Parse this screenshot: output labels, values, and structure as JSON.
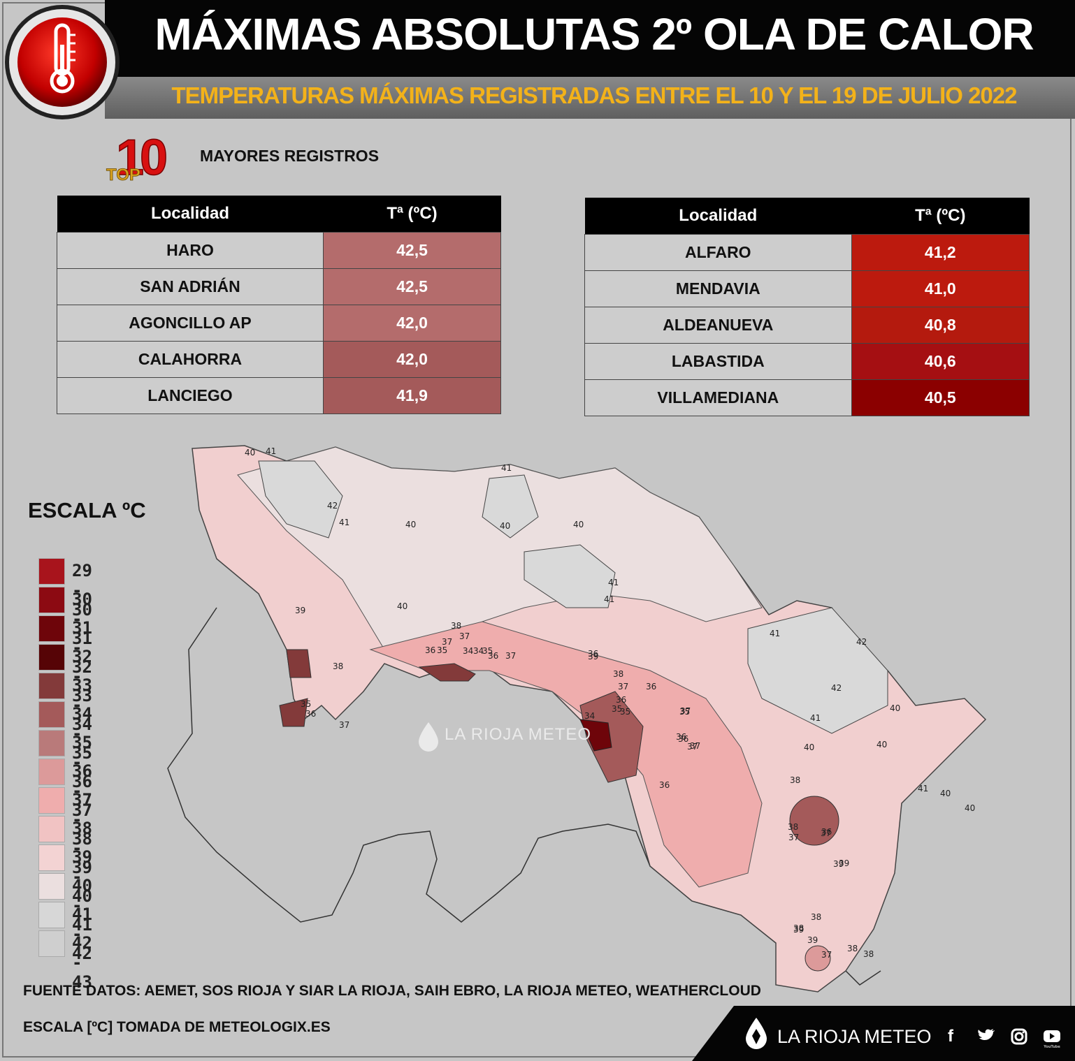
{
  "header": {
    "title": "MÁXIMAS ABSOLUTAS 2º OLA DE CALOR",
    "subtitle": "TEMPERATURAS MÁXIMAS REGISTRADAS ENTRE EL 10 Y EL 19 DE JULIO 2022"
  },
  "top10": {
    "badge_number": "10",
    "badge_word": "TOP",
    "label": "MAYORES REGISTROS"
  },
  "tables": {
    "left": {
      "col_loc": "Localidad",
      "col_temp": "Tª (ºC)",
      "rows": [
        {
          "loc": "HARO",
          "temp": "42,5",
          "color": "#b46c6c"
        },
        {
          "loc": "SAN ADRIÁN",
          "temp": "42,5",
          "color": "#b46c6c"
        },
        {
          "loc": "AGONCILLO AP",
          "temp": "42,0",
          "color": "#b46c6c"
        },
        {
          "loc": "CALAHORRA",
          "temp": "42,0",
          "color": "#a45a5a"
        },
        {
          "loc": "LANCIEGO",
          "temp": "41,9",
          "color": "#a45a5a"
        }
      ]
    },
    "right": {
      "col_loc": "Localidad",
      "col_temp": "Tª (ºC)",
      "rows": [
        {
          "loc": "ALFARO",
          "temp": "41,2",
          "color": "#bc1a0e"
        },
        {
          "loc": "MENDAVIA",
          "temp": "41,0",
          "color": "#bc1a0e"
        },
        {
          "loc": "ALDEANUEVA",
          "temp": "40,8",
          "color": "#b41a0e"
        },
        {
          "loc": "LABASTIDA",
          "temp": "40,6",
          "color": "#a50f12"
        },
        {
          "loc": "VILLAMEDIANA",
          "temp": "40,5",
          "color": "#8b0000"
        }
      ]
    }
  },
  "legend": {
    "title": "ESCALA ºC",
    "items": [
      {
        "label": "29 - 30",
        "color": "#a8141c"
      },
      {
        "label": "30 - 31",
        "color": "#8c0a12"
      },
      {
        "label": "31 - 32",
        "color": "#6e050a"
      },
      {
        "label": "32 - 33",
        "color": "#560406"
      },
      {
        "label": "33 - 34",
        "color": "#833a3a"
      },
      {
        "label": "34 - 35",
        "color": "#a45a5a"
      },
      {
        "label": "35 - 36",
        "color": "#b97a7a"
      },
      {
        "label": "36 - 37",
        "color": "#dc9a9a"
      },
      {
        "label": "37 - 38",
        "color": "#efadad"
      },
      {
        "label": "38 - 39",
        "color": "#f1c3c3"
      },
      {
        "label": "39 - 40",
        "color": "#f3d3d3"
      },
      {
        "label": "40 - 41",
        "color": "#ebdfdf"
      },
      {
        "label": "41 - 42",
        "color": "#d7d7d7"
      },
      {
        "label": "42 - 43",
        "color": "#cfcfcf"
      }
    ]
  },
  "map": {
    "isotherm_labels": [
      "40",
      "41",
      "42",
      "41",
      "41",
      "40",
      "40",
      "40",
      "41",
      "41",
      "40",
      "39",
      "38",
      "37",
      "37",
      "36",
      "35",
      "34",
      "34",
      "35",
      "36",
      "37",
      "38",
      "39",
      "38",
      "37",
      "36",
      "35",
      "34",
      "35",
      "36",
      "37",
      "36",
      "36",
      "37",
      "38",
      "39",
      "38",
      "39",
      "38",
      "37",
      "41",
      "42",
      "42",
      "41",
      "40",
      "40",
      "41",
      "40",
      "40",
      "40",
      "38",
      "37",
      "36",
      "39",
      "39",
      "38",
      "37",
      "38",
      "36",
      "35",
      "36",
      "37",
      "36",
      "35",
      "37"
    ]
  },
  "watermark": "LA RIOJA METEO",
  "footer": {
    "sources": "FUENTE DATOS: AEMET, SOS RIOJA Y SIAR LA RIOJA, SAIH EBRO, LA RIOJA METEO, WEATHERCLOUD",
    "scale": "ESCALA [ºC] TOMADA DE METEOLOGIX.ES"
  },
  "brand": {
    "name": "LA RIOJA METEO",
    "youtube_caption": "YouTube",
    "social": [
      "facebook-icon",
      "twitter-icon",
      "instagram-icon",
      "youtube-icon"
    ]
  }
}
